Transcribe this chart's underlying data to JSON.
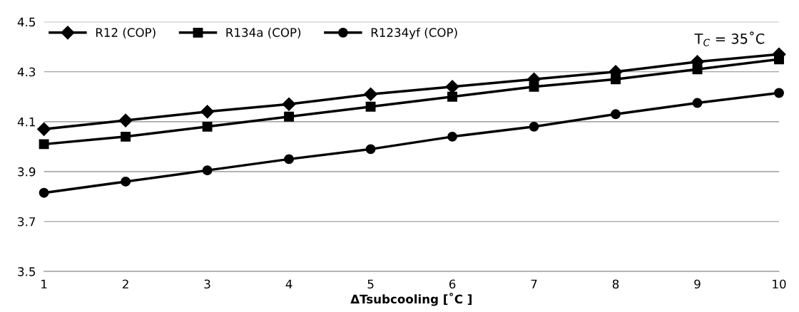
{
  "chart_data": {
    "type": "line",
    "xlabel": "ΔTsubcooling [˚C ]",
    "x": [
      1,
      2,
      3,
      4,
      5,
      6,
      7,
      8,
      9,
      10
    ],
    "xlim": [
      1,
      10
    ],
    "xticks": [
      1,
      2,
      3,
      4,
      5,
      6,
      7,
      8,
      9,
      10
    ],
    "ylim": [
      3.5,
      4.5
    ],
    "yticks": [
      3.5,
      3.7,
      3.9,
      4.1,
      4.3,
      4.5
    ],
    "grid": "y",
    "legend": "top left",
    "line_style": "solid",
    "series": [
      {
        "name": "R12 (COP)",
        "color": "#000000",
        "marker": "diamond",
        "values": [
          4.07,
          4.105,
          4.14,
          4.17,
          4.21,
          4.24,
          4.27,
          4.3,
          4.34,
          4.37
        ]
      },
      {
        "name": "R134a (COP)",
        "color": "#000000",
        "marker": "square",
        "values": [
          4.01,
          4.04,
          4.08,
          4.12,
          4.16,
          4.2,
          4.24,
          4.27,
          4.31,
          4.35
        ]
      },
      {
        "name": "R1234yf (COP)",
        "color": "#000000",
        "marker": "circle",
        "values": [
          3.815,
          3.86,
          3.905,
          3.95,
          3.99,
          4.04,
          4.08,
          4.13,
          4.175,
          4.215
        ]
      }
    ],
    "annotations": [
      "T$_{C}$ = 35˚C"
    ]
  }
}
